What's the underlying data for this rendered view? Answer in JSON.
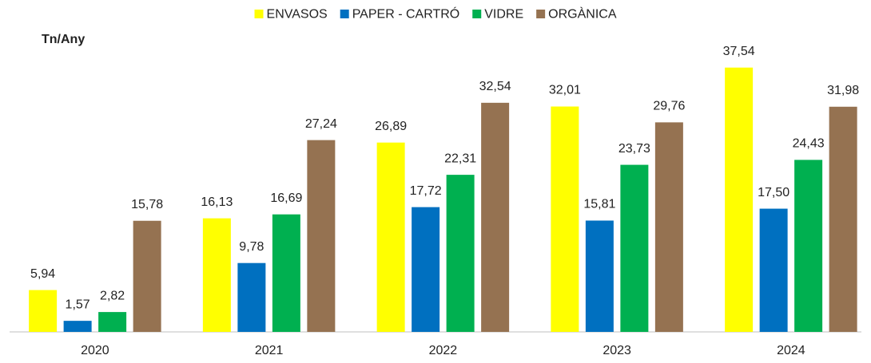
{
  "chart_data": {
    "type": "bar",
    "y_label": "Tn/Any",
    "categories": [
      "2020",
      "2021",
      "2022",
      "2023",
      "2024"
    ],
    "series": [
      {
        "name": "ENVASOS",
        "color": "#ffff00",
        "values": [
          5.94,
          16.13,
          26.89,
          32.01,
          37.54
        ],
        "value_labels": [
          "5,94",
          "16,13",
          "26,89",
          "32,01",
          "37,54"
        ]
      },
      {
        "name": "PAPER - CARTRÓ",
        "color": "#0070c0",
        "values": [
          1.57,
          9.78,
          17.72,
          15.81,
          17.5
        ],
        "value_labels": [
          "1,57",
          "9,78",
          "17,72",
          "15,81",
          "17,50"
        ]
      },
      {
        "name": "VIDRE",
        "color": "#00b050",
        "values": [
          2.82,
          16.69,
          22.31,
          23.73,
          24.43
        ],
        "value_labels": [
          "2,82",
          "16,69",
          "22,31",
          "23,73",
          "24,43"
        ]
      },
      {
        "name": "ORGÀNICA",
        "color": "#957251",
        "values": [
          15.78,
          27.24,
          32.54,
          29.76,
          31.98
        ],
        "value_labels": [
          "15,78",
          "27,24",
          "32,54",
          "29,76",
          "31,98"
        ]
      }
    ],
    "ylim": [
      0,
      40
    ],
    "legend": "top"
  }
}
